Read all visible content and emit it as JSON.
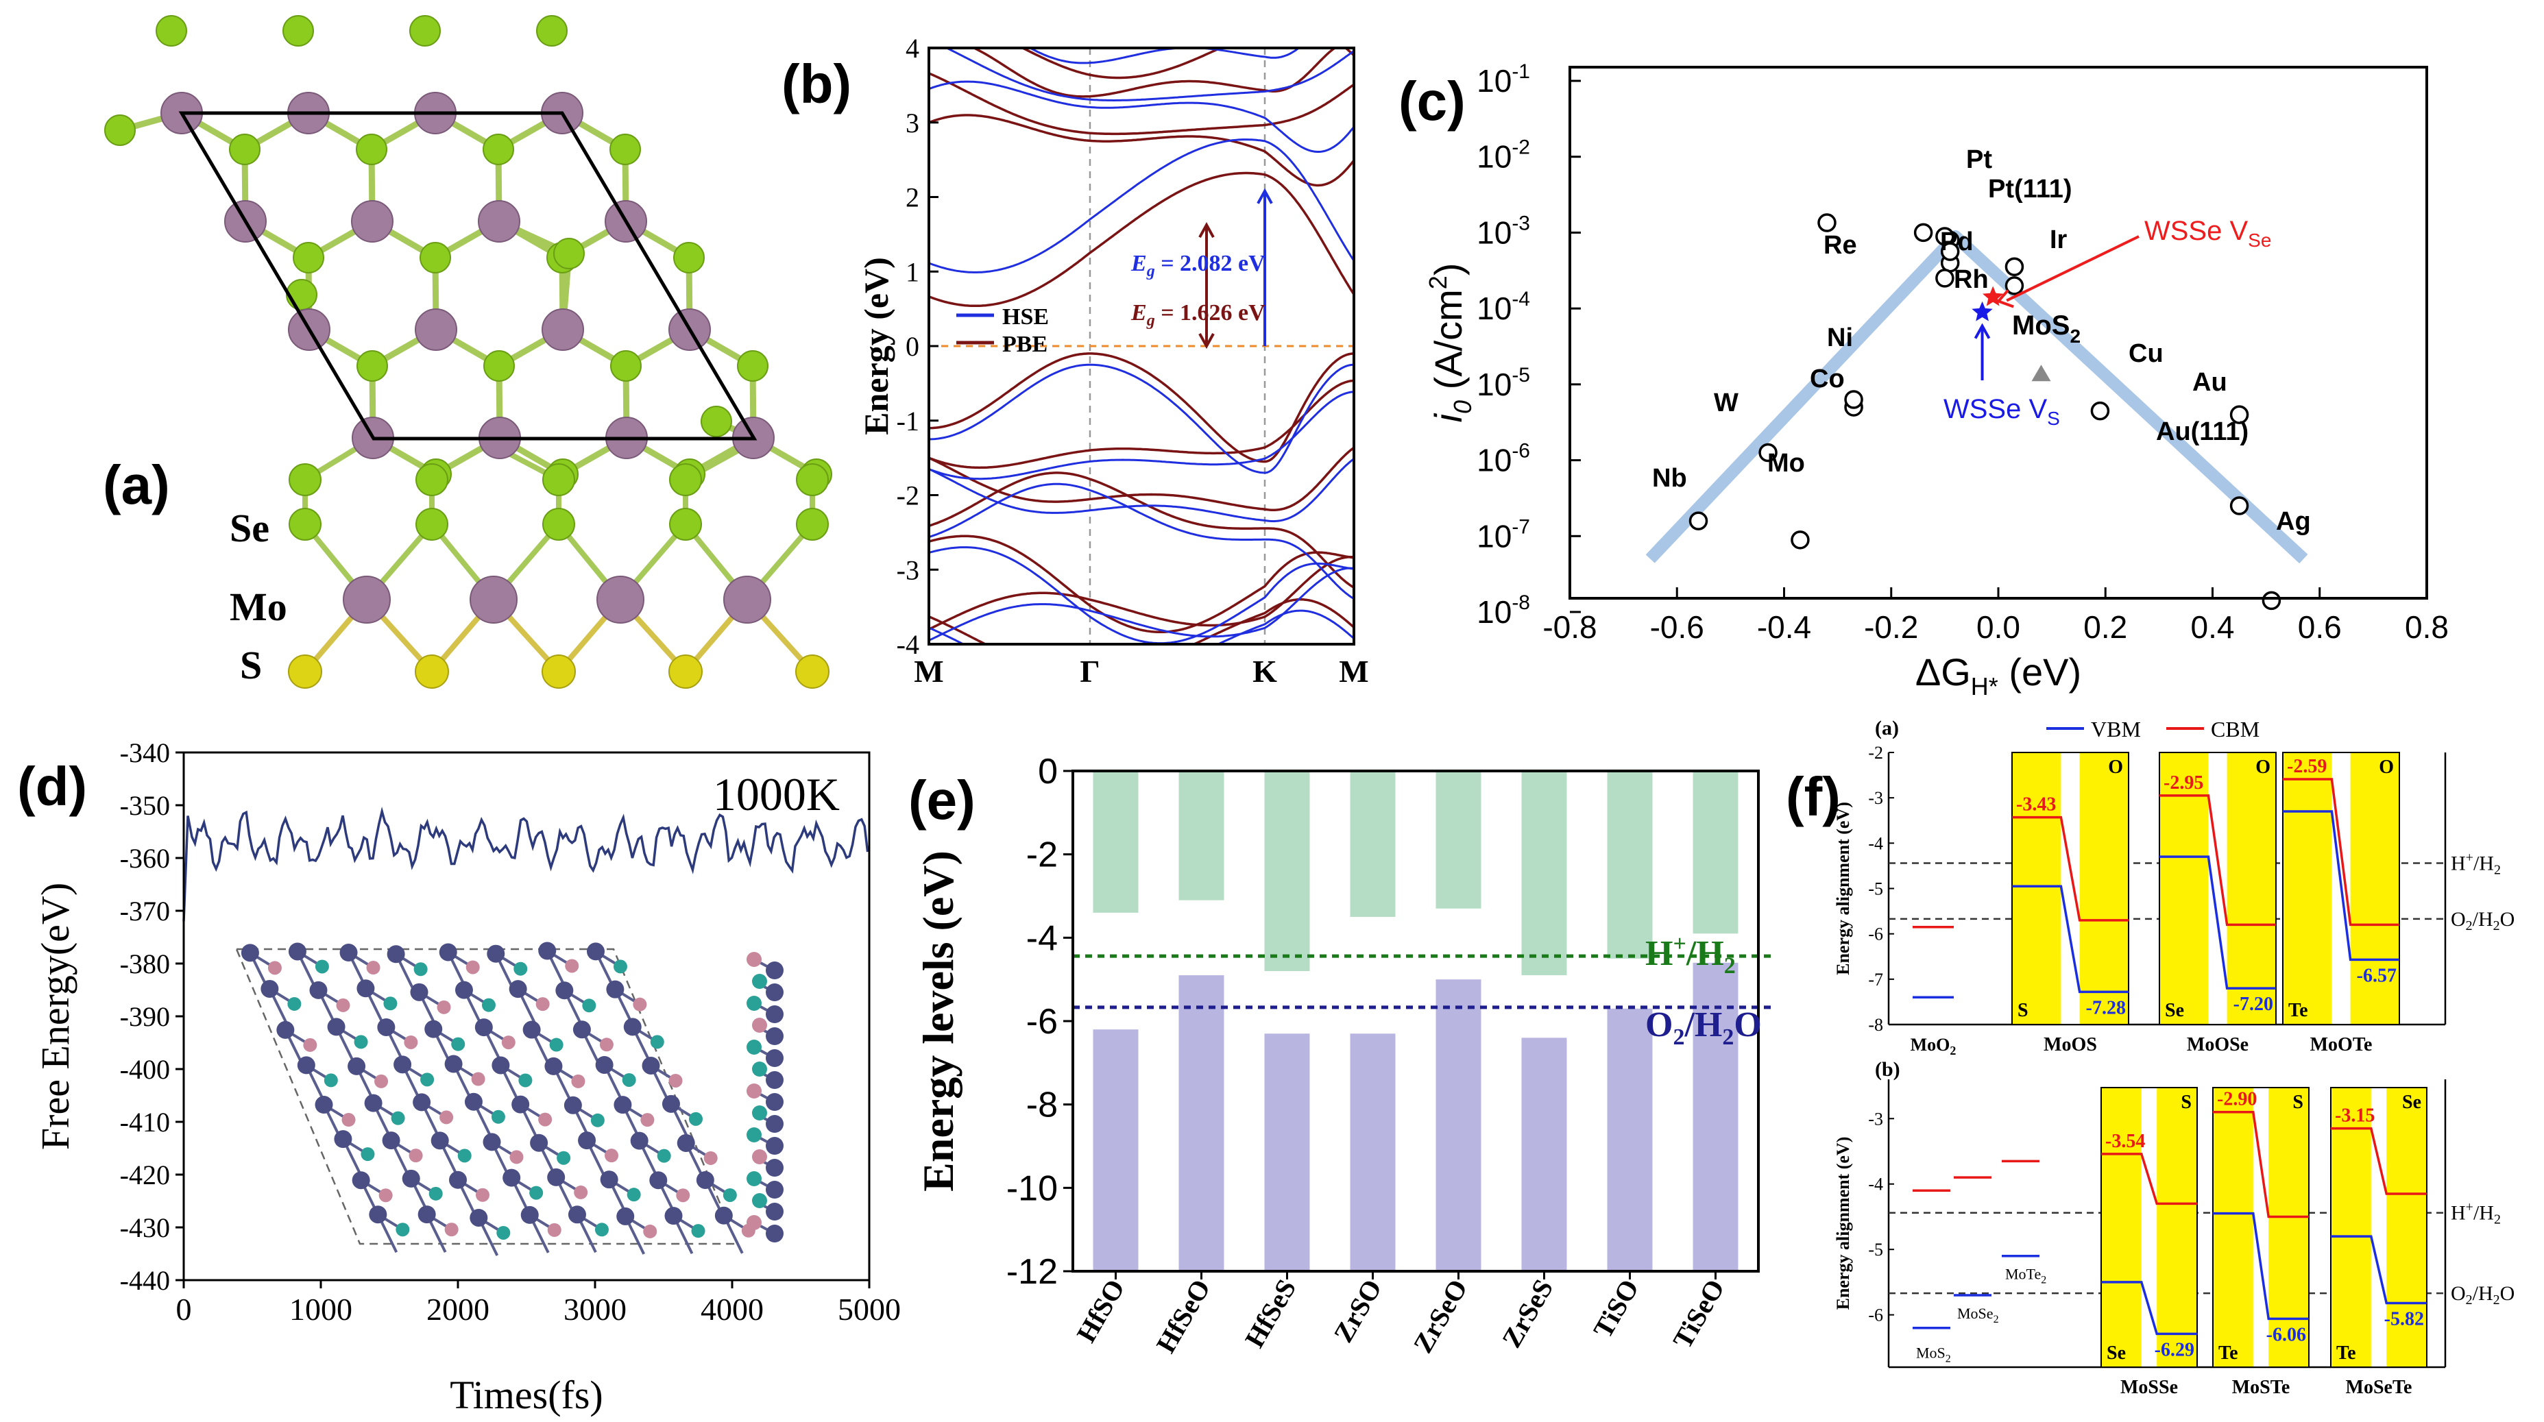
{
  "panels": {
    "a": {
      "label": "(a)",
      "atoms": [
        "Se",
        "Mo",
        "S"
      ],
      "colors": {
        "se": "#8ccc1e",
        "mo": "#a07d9c",
        "s": "#dcd414",
        "bond_top": "#a6c95a",
        "bond_bot": "#d4c24a",
        "cell": "#000000"
      }
    },
    "b": {
      "label": "(b)",
      "ylabel": "Energy (eV)",
      "ylim": [
        -4,
        4
      ],
      "yticks": [
        "-4",
        "-3",
        "-2",
        "-1",
        "0",
        "1",
        "2",
        "3",
        "4"
      ],
      "kpoints": [
        "M",
        "Γ",
        "K",
        "M"
      ],
      "legend": [
        "HSE",
        "PBE"
      ],
      "gap_hse": "E_g = 2.082 eV",
      "gap_hse_prefix": "E",
      "gap_hse_sub": "g",
      "gap_hse_value": " = 2.082 eV",
      "gap_pbe_prefix": "E",
      "gap_pbe_sub": "g",
      "gap_pbe_value": " = 1.626 eV",
      "colors": {
        "hse": "#1f2fe0",
        "pbe": "#7a1414",
        "fermi": "#ef8a2a"
      }
    },
    "c": {
      "label": "(c)",
      "xlabel": "ΔG",
      "xlabel_sub": "H*",
      "xlabel_unit": " (eV)",
      "ylabel": "i",
      "ylabel_sub": "0",
      "ylabel_unit": " (A/cm",
      "ylabel_sup": "2",
      "ylabel_close": ")",
      "xticks": [
        "-0.8",
        "-0.6",
        "-0.4",
        "-0.2",
        "0.0",
        "0.2",
        "0.4",
        "0.6",
        "0.8"
      ],
      "yticks_exp": [
        "-1",
        "-2",
        "-3",
        "-4",
        "-5",
        "-6",
        "-7",
        "-8"
      ],
      "ytick_base": "10",
      "metals": [
        {
          "name": "Pt",
          "x": -0.09,
          "y": -3.4
        },
        {
          "name": "Pt(111)",
          "x": -0.09,
          "y": -3.1
        },
        {
          "name": "Pd",
          "x": -0.14,
          "y": -3.0
        },
        {
          "name": "Ir",
          "x": 0.03,
          "y": -3.45
        },
        {
          "name": "Rh",
          "x": -0.1,
          "y": -3.6
        },
        {
          "name": "Re",
          "x": -0.32,
          "y": -2.87
        },
        {
          "name": "Ni",
          "x": -0.27,
          "y": -5.3
        },
        {
          "name": "Co",
          "x": -0.27,
          "y": -5.2
        },
        {
          "name": "W",
          "x": -0.43,
          "y": -5.9
        },
        {
          "name": "Nb",
          "x": -0.56,
          "y": -6.8
        },
        {
          "name": "Mo",
          "x": -0.37,
          "y": -7.05
        },
        {
          "name": "Cu",
          "x": 0.19,
          "y": -5.35
        },
        {
          "name": "Au",
          "x": 0.45,
          "y": -5.4
        },
        {
          "name": "Au(111)",
          "x": 0.45,
          "y": -6.6
        },
        {
          "name": "Ag",
          "x": 0.51,
          "y": -7.85
        }
      ],
      "extra_points": [
        {
          "x": -0.1,
          "y": -3.05
        },
        {
          "x": -0.09,
          "y": -3.25
        },
        {
          "x": 0.03,
          "y": -3.7
        }
      ],
      "mos2_label": "MoS",
      "mos2_sub": "2",
      "mos2_point": {
        "x": 0.08,
        "y": -4.85
      },
      "wsse_se_label": "WSSe V",
      "wsse_se_sub": "Se",
      "wsse_se_point": {
        "x": -0.01,
        "y": -3.85
      },
      "wsse_s_label": "WSSe V",
      "wsse_s_sub": "S",
      "wsse_s_point": {
        "x": -0.03,
        "y": -4.05
      },
      "volcano": [
        [
          -0.65,
          -7.3
        ],
        [
          -0.08,
          -3.05
        ],
        [
          0.57,
          -7.3
        ]
      ],
      "colors": {
        "volcano": "#a9c6e6",
        "red": "#ee1c1c",
        "blue": "#1a1ae6",
        "gray": "#888888"
      }
    },
    "d": {
      "label": "(d)",
      "title": "1000K",
      "xlabel": "Times(fs)",
      "ylabel": "Free Energy(eV)",
      "xlim": [
        0,
        5000
      ],
      "ylim": [
        -440,
        -340
      ],
      "xticks": [
        "0",
        "1000",
        "2000",
        "3000",
        "4000",
        "5000"
      ],
      "yticks": [
        "-340",
        "-350",
        "-360",
        "-370",
        "-380",
        "-390",
        "-400",
        "-410",
        "-420",
        "-430",
        "-440"
      ],
      "series_mean": -357,
      "colors": {
        "line": "#2d3a7c",
        "atom_dark": "#4a4e82",
        "atom_teal": "#2aa197",
        "atom_pink": "#c9879c"
      }
    },
    "e": {
      "label": "(e)",
      "ylabel": "Energy levels (eV)",
      "ylim": [
        -12,
        0
      ],
      "yticks": [
        "0",
        "-2",
        "-4",
        "-6",
        "-8",
        "-10",
        "-12"
      ],
      "categories": [
        "HfSO",
        "HfSeO",
        "HfSeS",
        "ZrSO",
        "ZrSeO",
        "ZrSeS",
        "TiSO",
        "TiSeO"
      ],
      "cbm": [
        -3.4,
        -3.1,
        -4.8,
        -3.5,
        -3.3,
        -4.9,
        -4.5,
        -3.9
      ],
      "vbm": [
        -6.2,
        -4.9,
        -6.3,
        -6.3,
        -5.0,
        -6.4,
        -5.7,
        -4.6
      ],
      "h_level": -4.44,
      "o_level": -5.67,
      "h_label": "H",
      "h_label_sup": "+",
      "h_label_end": "/H",
      "h_label_sub": "2",
      "o_label": "O",
      "o_label_sub": "2",
      "o_label_end": "/H",
      "o_label_sub2": "2",
      "o_label_tail": "O",
      "colors": {
        "cbm": "#b5dcc4",
        "vbm": "#b8b6e0",
        "h_line": "#1a7a1a",
        "o_line": "#1e1e8e"
      }
    },
    "f": {
      "label": "(f)",
      "sub_a": "(a)",
      "sub_b": "(b)",
      "legend_vbm": "VBM",
      "legend_cbm": "CBM",
      "ylabel": "Energy alignment (eV)",
      "yticks_a": [
        "-2",
        "-3",
        "-4",
        "-5",
        "-6",
        "-7",
        "-8"
      ],
      "yticks_b": [
        "-3",
        "-4",
        "-5",
        "-6"
      ],
      "h_label": "H",
      "h_sup": "+",
      "h_end": "/H",
      "h_sub": "2",
      "o_label": "O",
      "o_sub": "2",
      "o_end": "/H",
      "o_sub2": "2",
      "o_tail": "O",
      "row_a": {
        "ref_label": "MoO",
        "ref_sub": "2",
        "ref_cbm": -5.85,
        "ref_vbm": -7.4,
        "panels": [
          {
            "name": "MoOS",
            "left": "S",
            "right": "O",
            "cbm_hi": -3.43,
            "cbm_lo": -5.7,
            "vbm_hi": -4.95,
            "vbm_lo": -7.28,
            "cbm_label": "-3.43",
            "vbm_label": "-7.28"
          },
          {
            "name": "MoOSe",
            "left": "Se",
            "right": "O",
            "cbm_hi": -2.95,
            "cbm_lo": -5.8,
            "vbm_hi": -4.3,
            "vbm_lo": -7.2,
            "cbm_label": "-2.95",
            "vbm_label": "-7.20"
          },
          {
            "name": "MoOTe",
            "left": "Te",
            "right": "O",
            "cbm_hi": -2.59,
            "cbm_lo": -5.8,
            "vbm_hi": -3.3,
            "vbm_lo": -6.57,
            "cbm_label": "-2.59",
            "vbm_label": "-6.57"
          }
        ]
      },
      "row_b": {
        "refs": [
          {
            "label": "MoS",
            "sub": "2",
            "cbm": -4.1,
            "vbm": -6.2
          },
          {
            "label": "MoSe",
            "sub": "2",
            "cbm": -3.9,
            "vbm": -5.7
          },
          {
            "label": "MoTe",
            "sub": "2",
            "cbm": -3.65,
            "vbm": -5.1
          }
        ],
        "panels": [
          {
            "name": "MoSSe",
            "left": "Se",
            "right": "S",
            "cbm_hi": -3.54,
            "cbm_lo": -4.3,
            "vbm_hi": -5.5,
            "vbm_lo": -6.29,
            "cbm_label": "-3.54",
            "vbm_label": "-6.29"
          },
          {
            "name": "MoSTe",
            "left": "Te",
            "right": "S",
            "cbm_hi": -2.9,
            "cbm_lo": -4.5,
            "vbm_hi": -4.45,
            "vbm_lo": -6.06,
            "cbm_label": "-2.90",
            "vbm_label": "-6.06"
          },
          {
            "name": "MoSeTe",
            "left": "Te",
            "right": "Se",
            "cbm_hi": -3.15,
            "cbm_lo": -4.15,
            "vbm_hi": -4.8,
            "vbm_lo": -5.82,
            "cbm_label": "-3.15",
            "vbm_label": "-5.82"
          }
        ]
      },
      "colors": {
        "yellow": "#fff200",
        "vbm": "#1b2ee0",
        "cbm": "#e81818",
        "cbm_text": "#e81818",
        "vbm_text": "#1b2ee0"
      }
    }
  }
}
